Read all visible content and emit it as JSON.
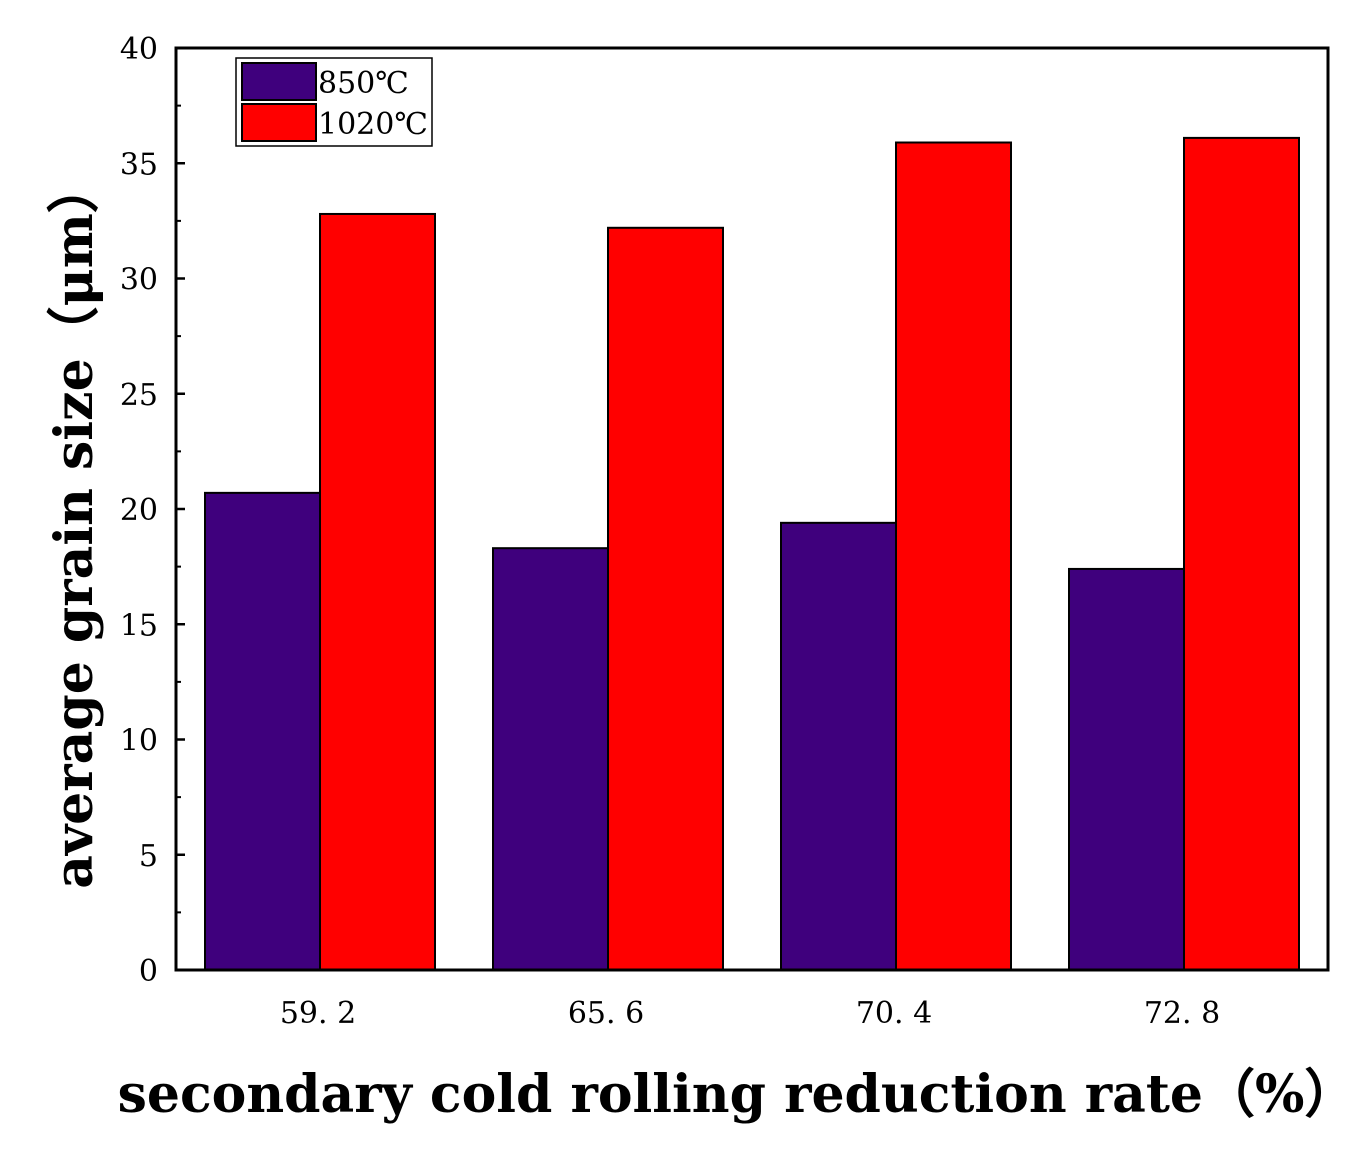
{
  "chart_data": {
    "type": "bar",
    "title": "",
    "xlabel": "secondary cold rolling reduction rate（%）",
    "ylabel": "average grain size（μm）",
    "categories": [
      "59. 2",
      "65. 6",
      "70. 4",
      "72. 8"
    ],
    "series": [
      {
        "name": "850℃",
        "color": "#3f007d",
        "values": [
          20.7,
          18.3,
          19.4,
          17.4
        ]
      },
      {
        "name": "1020℃",
        "color": "#ff0000",
        "values": [
          32.8,
          32.2,
          35.9,
          36.1
        ]
      }
    ],
    "ylim": [
      0,
      40
    ],
    "yticks": [
      "0",
      "5",
      "10",
      "15",
      "20",
      "25",
      "30",
      "35",
      "40"
    ],
    "ytick_values": [
      0,
      5,
      10,
      15,
      20,
      25,
      30,
      35,
      40
    ],
    "legend": "top-left",
    "grid": false
  }
}
